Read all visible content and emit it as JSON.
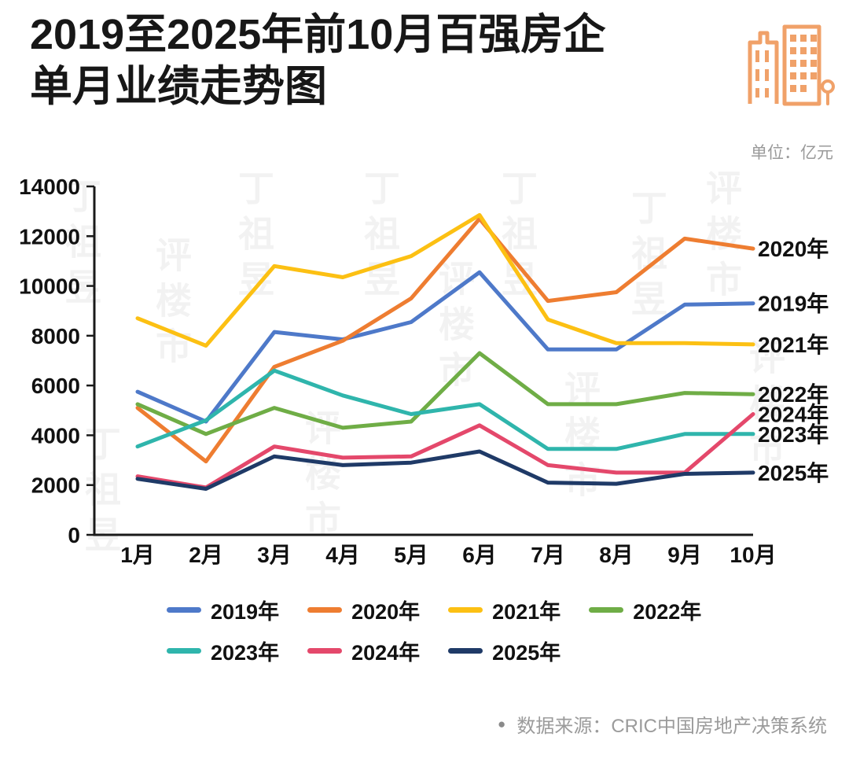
{
  "header": {
    "title_line1": "2019至2025年前10月百强房企",
    "title_line2": "单月业绩走势图",
    "unit_label": "单位：亿元"
  },
  "watermark": {
    "text": "丁祖昱评楼市"
  },
  "chart_data": {
    "type": "line",
    "categories": [
      "1月",
      "2月",
      "3月",
      "4月",
      "5月",
      "6月",
      "7月",
      "8月",
      "9月",
      "10月"
    ],
    "ylim": [
      0,
      14000
    ],
    "yticks": [
      0,
      2000,
      4000,
      6000,
      8000,
      10000,
      12000,
      14000
    ],
    "grid": false,
    "legend_position": "bottom",
    "series": [
      {
        "name": "2019年",
        "color": "#4E79C9",
        "values": [
          5750,
          4550,
          8150,
          7850,
          8550,
          10550,
          7450,
          7450,
          9250,
          9300
        ]
      },
      {
        "name": "2020年",
        "color": "#EE7D31",
        "values": [
          5100,
          2950,
          6750,
          7800,
          9500,
          12700,
          9400,
          9750,
          11900,
          11500
        ]
      },
      {
        "name": "2021年",
        "color": "#FCC013",
        "values": [
          8700,
          7600,
          10800,
          10350,
          11200,
          12850,
          8650,
          7700,
          7700,
          7650
        ]
      },
      {
        "name": "2022年",
        "color": "#6FAD46",
        "values": [
          5250,
          4050,
          5100,
          4300,
          4550,
          7300,
          5250,
          5250,
          5700,
          5650
        ]
      },
      {
        "name": "2023年",
        "color": "#2FB5AC",
        "values": [
          3550,
          4600,
          6600,
          5600,
          4850,
          5250,
          3450,
          3450,
          4050,
          4050
        ]
      },
      {
        "name": "2024年",
        "color": "#E4486B",
        "values": [
          2350,
          1900,
          3550,
          3100,
          3150,
          4400,
          2800,
          2500,
          2500,
          4850
        ]
      },
      {
        "name": "2025年",
        "color": "#1F3A67",
        "values": [
          2250,
          1850,
          3150,
          2800,
          2900,
          3350,
          2100,
          2050,
          2450,
          2500
        ]
      }
    ]
  },
  "footer": {
    "bullet": "●",
    "source": "数据来源：CRIC中国房地产决策系统"
  }
}
